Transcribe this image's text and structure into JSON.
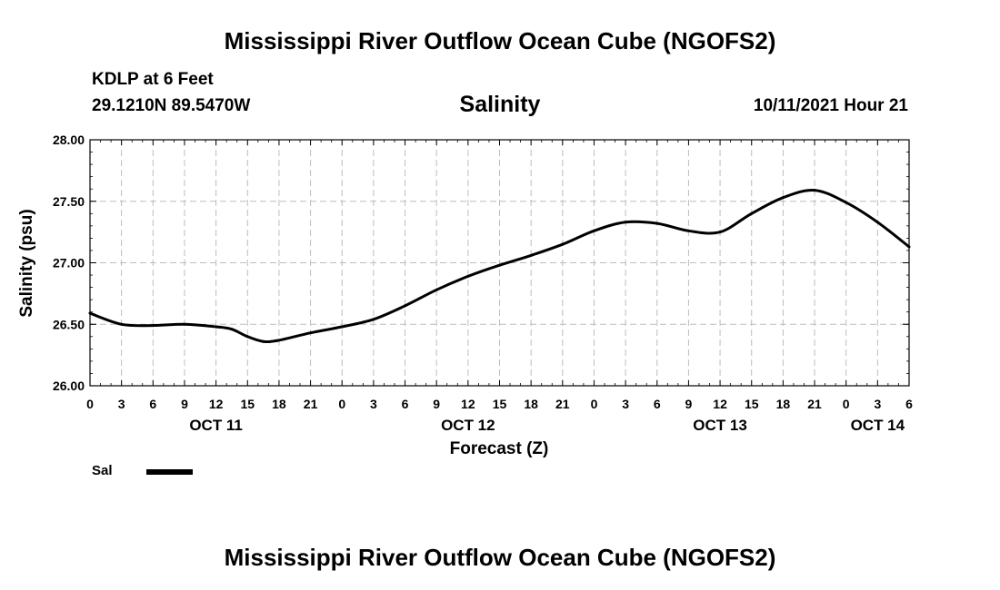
{
  "header": {
    "title": "Mississippi River Outflow Ocean Cube (NGOFS2)",
    "station": "KDLP at 6 Feet",
    "coords": "29.1210N  89.5470W",
    "parameter": "Salinity",
    "datetime": "10/11/2021 Hour 21"
  },
  "footer": {
    "title": "Mississippi River Outflow Ocean Cube (NGOFS2)"
  },
  "legend": {
    "series_label": "Sal"
  },
  "chart_data": {
    "type": "line",
    "title": "Salinity",
    "xlabel": "Forecast (Z)",
    "ylabel": "Salinity (psu)",
    "ylim": [
      26.0,
      28.0
    ],
    "xlim": [
      0,
      78
    ],
    "grid": true,
    "x_unit": "hours since Oct 11 00Z",
    "y_ticks": [
      "26.00",
      "26.50",
      "27.00",
      "27.50",
      "28.00"
    ],
    "y_tick_values": [
      26.0,
      26.5,
      27.0,
      27.5,
      28.0
    ],
    "x_tick_labels": [
      "0",
      "3",
      "6",
      "9",
      "12",
      "15",
      "18",
      "21",
      "0",
      "3",
      "6",
      "9",
      "12",
      "15",
      "18",
      "21",
      "0",
      "3",
      "6",
      "9",
      "12",
      "15",
      "18",
      "21",
      "0",
      "3",
      "6"
    ],
    "day_labels": [
      {
        "label": "OCT 11",
        "hour": 12
      },
      {
        "label": "OCT 12",
        "hour": 36
      },
      {
        "label": "OCT 13",
        "hour": 60
      },
      {
        "label": "OCT 14",
        "hour": 75
      }
    ],
    "series": [
      {
        "name": "Sal",
        "color": "#000000",
        "x": [
          0,
          3,
          6,
          9,
          12,
          13.5,
          15,
          16.5,
          18,
          21,
          24,
          27,
          30,
          33,
          36,
          39,
          42,
          45,
          48,
          51,
          54,
          57,
          60,
          63,
          66,
          69,
          72,
          75,
          78
        ],
        "values": [
          26.59,
          26.5,
          26.49,
          26.5,
          26.48,
          26.46,
          26.4,
          26.36,
          26.37,
          26.43,
          26.48,
          26.54,
          26.65,
          26.78,
          26.89,
          26.98,
          27.06,
          27.15,
          27.26,
          27.33,
          27.32,
          27.26,
          27.25,
          27.4,
          27.53,
          27.59,
          27.49,
          27.33,
          27.13
        ]
      }
    ]
  }
}
